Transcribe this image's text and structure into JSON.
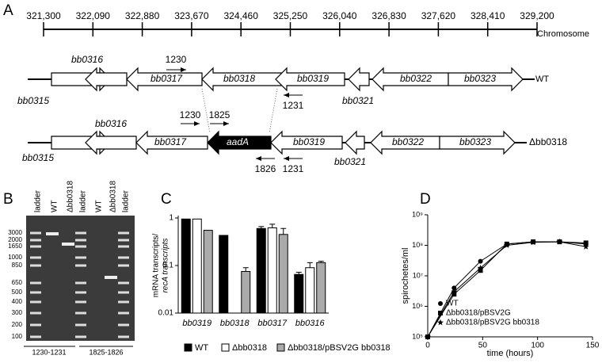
{
  "panel_a": {
    "label": "A",
    "axis": {
      "xlim": [
        321300,
        329200
      ],
      "xticks": [
        {
          "value": 321300,
          "label": "321,300"
        },
        {
          "value": 322090,
          "label": "322,090"
        },
        {
          "value": 322880,
          "label": "322,880"
        },
        {
          "value": 323670,
          "label": "323,670"
        },
        {
          "value": 324460,
          "label": "324,460"
        },
        {
          "value": 325250,
          "label": "325,250"
        },
        {
          "value": 326040,
          "label": "326,040"
        },
        {
          "value": 326830,
          "label": "326,830"
        },
        {
          "value": 327620,
          "label": "327,620"
        },
        {
          "value": 328410,
          "label": "328,410"
        },
        {
          "value": 329200,
          "label": "329,200"
        }
      ],
      "label": "Chromosome"
    },
    "wt": {
      "name": "WT",
      "genes": [
        "bb0315",
        "bb0316",
        "bb0317",
        "bb0318",
        "bb0319",
        "bb0321",
        "bb0322",
        "bb0323"
      ],
      "primers": [
        "1230",
        "1231"
      ]
    },
    "mutant": {
      "name": "Δbb0318",
      "genes": [
        "bb0315",
        "bb0316",
        "bb0317",
        "aadA",
        "bb0319",
        "bb0321",
        "bb0322",
        "bb0323"
      ],
      "primers": [
        "1230",
        "1825",
        "1826",
        "1231"
      ]
    }
  },
  "panel_b": {
    "label": "B",
    "lanes": [
      "ladder",
      "WT",
      "Δbb0318",
      "ladder",
      "WT",
      "Δbb0318",
      "ladder"
    ],
    "sizes": [
      3000,
      2000,
      1650,
      1000,
      850,
      650,
      500,
      400,
      300,
      200,
      100
    ],
    "pairs": [
      "1230-1231",
      "1825-1826"
    ]
  },
  "chart_data": [
    {
      "type": "bar",
      "panel": "C",
      "y_label": [
        "mRNA transcripts/",
        "recA transcripts"
      ],
      "log_scale": true,
      "legend": "bottom",
      "categories": [
        "bb0319",
        "bb0318",
        "bb0317",
        "bb0316"
      ],
      "ylim": [
        0.01,
        1
      ],
      "yticks": [
        0.01,
        0.1,
        1
      ],
      "series": [
        {
          "name": "WT",
          "color": "#000000",
          "values": [
            0.95,
            0.43,
            0.6,
            0.065
          ],
          "errors": [
            0,
            0,
            0.06,
            0.007
          ]
        },
        {
          "name": "Δbb0318",
          "color": "#ffffff",
          "values": [
            0.95,
            null,
            0.62,
            0.09
          ],
          "errors": [
            0,
            null,
            0.12,
            0.025
          ]
        },
        {
          "name": "Δbb0318/pBSV2G bb0318",
          "color": "#aaaaaa",
          "values": [
            0.55,
            0.075,
            0.45,
            0.115
          ],
          "errors": [
            0,
            0.015,
            0.15,
            0.008
          ]
        }
      ]
    },
    {
      "type": "line",
      "panel": "D",
      "x_label": "time (hours)",
      "y_label": "spirochetes/ml",
      "log_scale": true,
      "legend": "lower left",
      "x": [
        0,
        24,
        48,
        72,
        96,
        120,
        144
      ],
      "xlim": [
        0,
        150
      ],
      "xticks": [
        0,
        50,
        100,
        150
      ],
      "ylim": [
        100000,
        1000000000
      ],
      "yticks": [
        {
          "value": 100000,
          "label": "10⁵"
        },
        {
          "value": 1000000,
          "label": "10⁶"
        },
        {
          "value": 10000000,
          "label": "10⁷"
        },
        {
          "value": 100000000,
          "label": "10⁸"
        },
        {
          "value": 1000000000,
          "label": "10⁹"
        }
      ],
      "series": [
        {
          "name": "WT",
          "color": "#000000",
          "marker": "circle",
          "values": [
            100000,
            4000000,
            30000000,
            110000000,
            130000000,
            130000000,
            110000000
          ]
        },
        {
          "name": "Δbb0318/pBSV2G",
          "color": "#000000",
          "marker": "square",
          "values": [
            100000,
            2500000,
            15000000,
            110000000,
            130000000,
            130000000,
            120000000
          ]
        },
        {
          "name": "Δbb0318/pBSV2G bb0318",
          "color": "#000000",
          "marker": "star",
          "values": [
            100000,
            3000000,
            18000000,
            100000000,
            125000000,
            130000000,
            90000000
          ]
        }
      ]
    }
  ]
}
